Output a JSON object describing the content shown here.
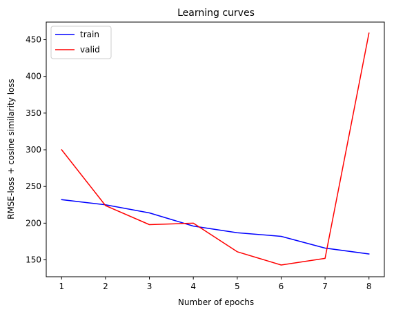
{
  "chart_data": {
    "type": "line",
    "title": "Learning curves",
    "xlabel": "Number of epochs",
    "ylabel": "RMSE-loss + cosine similarity loss",
    "x": [
      1,
      2,
      3,
      4,
      5,
      6,
      7,
      8
    ],
    "xticks": [
      "1",
      "2",
      "3",
      "4",
      "5",
      "6",
      "7",
      "8"
    ],
    "yticks": [
      "150",
      "200",
      "250",
      "300",
      "350",
      "400",
      "450"
    ],
    "ytick_values": [
      150,
      200,
      250,
      300,
      350,
      400,
      450
    ],
    "xlim": [
      0.65,
      8.35
    ],
    "ylim": [
      127,
      474
    ],
    "grid": false,
    "legend_position": "upper-left",
    "series": [
      {
        "name": "train",
        "color": "#0000ff",
        "values": [
          232,
          225,
          214,
          196,
          187,
          182,
          166,
          158
        ]
      },
      {
        "name": "valid",
        "color": "#ff0000",
        "values": [
          300,
          224,
          198,
          200,
          161,
          143,
          152,
          459
        ]
      }
    ]
  }
}
